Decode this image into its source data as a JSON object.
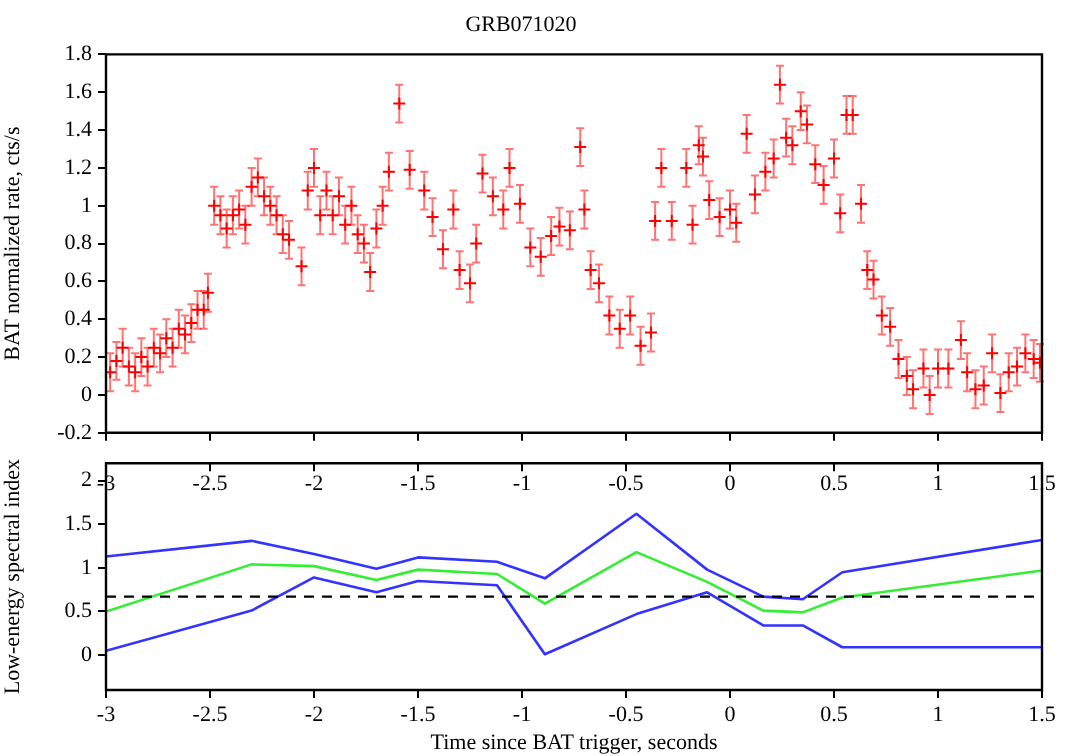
{
  "chart_data": [
    {
      "type": "scatter",
      "title": "GRB071020",
      "ylabel": "BAT normalized rate, cts/s",
      "xlim": [
        -3,
        1.5
      ],
      "xticks": [
        -3,
        -2.5,
        -2,
        -1.5,
        -1,
        -0.5,
        0,
        0.5,
        1,
        1.5
      ],
      "ylim": [
        -0.2,
        1.8
      ],
      "yticks": [
        -0.2,
        0,
        0.2,
        0.4,
        0.6,
        0.8,
        1,
        1.2,
        1.4,
        1.6,
        1.8
      ],
      "tick_labels": "y",
      "marker": "cross",
      "series": [
        {
          "color": "#ff0000",
          "x": [
            -2.98,
            -2.95,
            -2.92,
            -2.89,
            -2.86,
            -2.83,
            -2.8,
            -2.77,
            -2.74,
            -2.71,
            -2.68,
            -2.65,
            -2.62,
            -2.59,
            -2.56,
            -2.53,
            -2.51,
            -2.48,
            -2.45,
            -2.42,
            -2.39,
            -2.36,
            -2.33,
            -2.3,
            -2.27,
            -2.24,
            -2.21,
            -2.18,
            -2.15,
            -2.12,
            -2.06,
            -2.03,
            -2.0,
            -1.97,
            -1.94,
            -1.91,
            -1.88,
            -1.85,
            -1.82,
            -1.79,
            -1.76,
            -1.73,
            -1.7,
            -1.67,
            -1.64,
            -1.59,
            -1.54,
            -1.47,
            -1.43,
            -1.38,
            -1.33,
            -1.3,
            -1.25,
            -1.22,
            -1.19,
            -1.14,
            -1.09,
            -1.06,
            -1.01,
            -0.96,
            -0.91,
            -0.86,
            -0.82,
            -0.77,
            -0.72,
            -0.7,
            -0.67,
            -0.63,
            -0.58,
            -0.53,
            -0.48,
            -0.43,
            -0.38,
            -0.36,
            -0.33,
            -0.28,
            -0.21,
            -0.18,
            -0.15,
            -0.13,
            -0.1,
            -0.05,
            0,
            0.03,
            0.08,
            0.12,
            0.17,
            0.21,
            0.24,
            0.27,
            0.3,
            0.34,
            0.37,
            0.41,
            0.45,
            0.5,
            0.53,
            0.56,
            0.59,
            0.63,
            0.66,
            0.69,
            0.73,
            0.77,
            0.81,
            0.85,
            0.88,
            0.93,
            0.96,
            1.0,
            1.05,
            1.11,
            1.14,
            1.18,
            1.22,
            1.26,
            1.3,
            1.34,
            1.38,
            1.42,
            1.46,
            1.49
          ],
          "values": [
            0.12,
            0.18,
            0.25,
            0.15,
            0.12,
            0.2,
            0.15,
            0.25,
            0.22,
            0.3,
            0.25,
            0.35,
            0.32,
            0.38,
            0.45,
            0.45,
            0.54,
            1.0,
            0.95,
            0.88,
            0.95,
            0.98,
            0.9,
            1.1,
            1.15,
            1.05,
            1.0,
            0.95,
            0.85,
            0.82,
            0.68,
            1.08,
            1.2,
            0.95,
            1.08,
            0.95,
            1.05,
            0.9,
            1.0,
            0.85,
            0.8,
            0.65,
            0.88,
            1.0,
            1.18,
            1.54,
            1.19,
            1.08,
            0.94,
            0.77,
            0.98,
            0.66,
            0.59,
            0.8,
            1.17,
            1.05,
            0.98,
            1.2,
            1.01,
            0.78,
            0.73,
            0.84,
            0.89,
            0.87,
            1.31,
            0.98,
            0.66,
            0.59,
            0.42,
            0.35,
            0.42,
            0.26,
            0.33,
            0.92,
            1.2,
            0.92,
            1.2,
            0.9,
            1.32,
            1.26,
            1.03,
            0.94,
            0.98,
            0.91,
            1.38,
            1.06,
            1.18,
            1.25,
            1.64,
            1.36,
            1.32,
            1.5,
            1.43,
            1.22,
            1.11,
            1.25,
            0.96,
            1.48,
            1.48,
            1.01,
            0.66,
            0.61,
            0.42,
            0.36,
            0.19,
            0.1,
            0.03,
            0.14,
            0.0,
            0.14,
            0.14,
            0.29,
            0.12,
            0.03,
            0.05,
            0.22,
            0.01,
            0.12,
            0.15,
            0.22,
            0.19,
            0.17
          ],
          "errors": [
            0.1,
            0.1,
            0.1,
            0.1,
            0.1,
            0.1,
            0.1,
            0.1,
            0.1,
            0.1,
            0.1,
            0.1,
            0.1,
            0.1,
            0.1,
            0.1,
            0.1,
            0.1,
            0.1,
            0.1,
            0.1,
            0.1,
            0.1,
            0.1,
            0.1,
            0.1,
            0.1,
            0.1,
            0.1,
            0.1,
            0.1,
            0.1,
            0.1,
            0.1,
            0.1,
            0.1,
            0.1,
            0.1,
            0.1,
            0.1,
            0.1,
            0.1,
            0.1,
            0.1,
            0.1,
            0.1,
            0.1,
            0.1,
            0.1,
            0.1,
            0.1,
            0.1,
            0.1,
            0.1,
            0.1,
            0.1,
            0.1,
            0.1,
            0.1,
            0.1,
            0.1,
            0.1,
            0.1,
            0.1,
            0.1,
            0.1,
            0.1,
            0.1,
            0.1,
            0.1,
            0.1,
            0.1,
            0.1,
            0.1,
            0.1,
            0.1,
            0.1,
            0.1,
            0.1,
            0.1,
            0.1,
            0.1,
            0.1,
            0.1,
            0.1,
            0.1,
            0.1,
            0.1,
            0.1,
            0.1,
            0.1,
            0.1,
            0.1,
            0.1,
            0.1,
            0.1,
            0.1,
            0.1,
            0.1,
            0.1,
            0.1,
            0.1,
            0.1,
            0.1,
            0.1,
            0.1,
            0.1,
            0.1,
            0.1,
            0.1,
            0.1,
            0.1,
            0.1,
            0.1,
            0.1,
            0.1,
            0.1,
            0.1,
            0.1,
            0.1,
            0.1,
            0.1
          ]
        }
      ]
    },
    {
      "type": "line",
      "xlabel": "Time since BAT trigger, seconds",
      "ylabel": "Low-energy spectral index",
      "xlim": [
        -3,
        1.5
      ],
      "xticks": [
        -3,
        -2.5,
        -2,
        -1.5,
        -1,
        -0.5,
        0,
        0.5,
        1,
        1.5
      ],
      "x2lim": [
        -3,
        1.5
      ],
      "x2ticks": [
        -3,
        -2.5,
        -2,
        -1.5,
        -1,
        -0.5,
        0,
        0.5,
        1,
        1.5
      ],
      "ylim": [
        -0.4,
        2.2
      ],
      "yticks": [
        0,
        0.5,
        1,
        1.5,
        2
      ],
      "x": [
        -3,
        -2.3,
        -2.0,
        -1.7,
        -1.5,
        -1.12,
        -0.89,
        -0.45,
        -0.11,
        0.16,
        0.35,
        0.54,
        1.5
      ],
      "series": [
        {
          "color": "#3333ff",
          "values": [
            1.13,
            1.31,
            1.16,
            0.99,
            1.12,
            1.07,
            0.88,
            1.62,
            0.98,
            0.67,
            0.64,
            0.95,
            1.32
          ]
        },
        {
          "color": "#33ee33",
          "values": [
            0.5,
            1.04,
            1.02,
            0.86,
            0.98,
            0.93,
            0.59,
            1.18,
            0.84,
            0.51,
            0.49,
            0.66,
            0.97
          ]
        },
        {
          "color": "#3333ff",
          "values": [
            0.05,
            0.51,
            0.89,
            0.72,
            0.85,
            0.8,
            0.01,
            0.47,
            0.72,
            0.34,
            0.34,
            0.09,
            0.09
          ]
        }
      ],
      "ref_lines": [
        {
          "axis": "y",
          "value": 0.67,
          "color": "#000000",
          "line_style": "dashed"
        }
      ]
    }
  ]
}
